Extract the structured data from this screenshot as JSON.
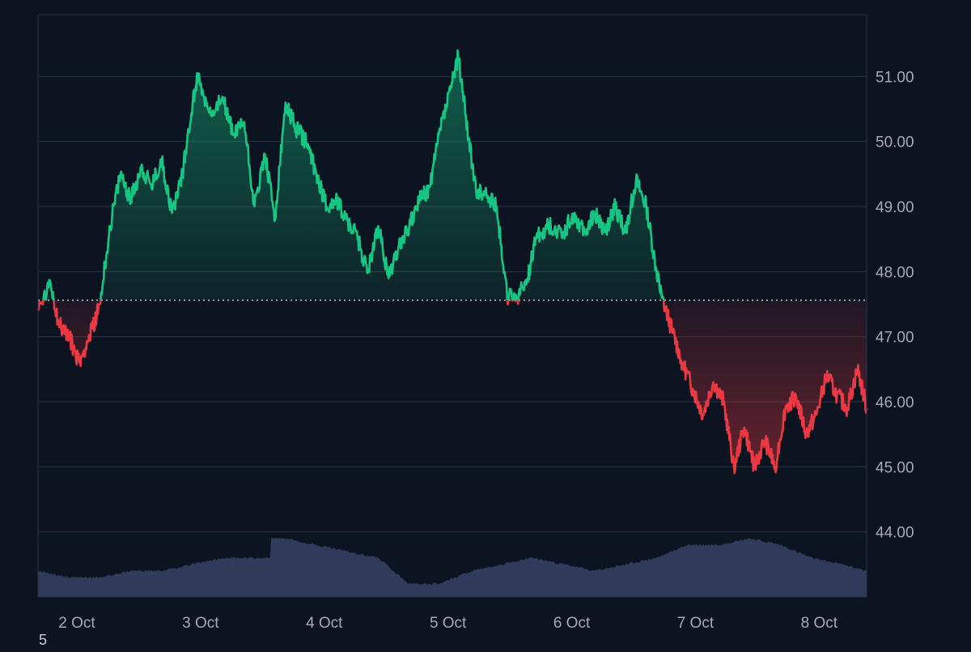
{
  "colors": {
    "background": "#0d1421",
    "grid": "#2b3445",
    "axis_text": "#a3aab8",
    "up": "#16c784",
    "down": "#ea3943",
    "baseline": "#d0d4dc",
    "volume": "#323a5c"
  },
  "corner_label": "5",
  "chart_data": {
    "type": "area",
    "title": "",
    "xlabel": "",
    "ylabel": "",
    "ylim": [
      43.0,
      51.95
    ],
    "xlim": [
      "2 Oct 00:00",
      "8 Oct 16:45"
    ],
    "baseline": 47.56,
    "grid": true,
    "y_axis_position": "right",
    "y_ticks": [
      "51.00",
      "50.00",
      "49.00",
      "48.00",
      "47.00",
      "46.00",
      "45.00",
      "44.00"
    ],
    "x_ticks": [
      "2 Oct",
      "3 Oct",
      "4 Oct",
      "5 Oct",
      "6 Oct",
      "7 Oct",
      "8 Oct"
    ],
    "price_series": {
      "x": [
        "2 Oct 00:00",
        "2 Oct 02:30",
        "2 Oct 04:00",
        "2 Oct 06:00",
        "2 Oct 08:00",
        "2 Oct 10:00",
        "2 Oct 12:00",
        "2 Oct 14:00",
        "2 Oct 16:00",
        "2 Oct 18:00",
        "2 Oct 20:00",
        "2 Oct 22:00",
        "3 Oct 00:00",
        "3 Oct 02:00",
        "3 Oct 04:00",
        "3 Oct 06:00",
        "3 Oct 07:00",
        "3 Oct 09:00",
        "3 Oct 12:00",
        "3 Oct 14:00",
        "3 Oct 16:00",
        "3 Oct 18:00",
        "3 Oct 20:00",
        "3 Oct 22:00",
        "4 Oct 00:00",
        "4 Oct 02:00",
        "4 Oct 04:00",
        "4 Oct 06:00",
        "4 Oct 08:00",
        "4 Oct 10:00",
        "4 Oct 12:00",
        "4 Oct 14:00",
        "4 Oct 16:00",
        "4 Oct 18:00",
        "4 Oct 20:00",
        "4 Oct 22:00",
        "5 Oct 00:00",
        "5 Oct 02:00",
        "5 Oct 04:00",
        "5 Oct 06:00",
        "5 Oct 08:00",
        "5 Oct 09:30",
        "5 Oct 11:00",
        "5 Oct 13:00",
        "5 Oct 15:00",
        "5 Oct 17:00",
        "5 Oct 19:00",
        "5 Oct 21:00",
        "5 Oct 23:00",
        "6 Oct 00:30",
        "6 Oct 03:00",
        "6 Oct 06:00",
        "6 Oct 08:00",
        "6 Oct 10:00",
        "6 Oct 12:00",
        "6 Oct 14:00",
        "6 Oct 16:00",
        "6 Oct 18:00",
        "6 Oct 20:00",
        "6 Oct 22:00",
        "7 Oct 00:00",
        "7 Oct 01:00",
        "7 Oct 03:00",
        "7 Oct 05:00",
        "7 Oct 07:00",
        "7 Oct 09:00",
        "7 Oct 11:00",
        "7 Oct 13:00",
        "7 Oct 15:00",
        "7 Oct 17:00",
        "7 Oct 19:00",
        "7 Oct 21:00",
        "7 Oct 23:00",
        "8 Oct 01:00",
        "8 Oct 03:00",
        "8 Oct 05:00",
        "8 Oct 07:00",
        "8 Oct 09:00",
        "8 Oct 11:00",
        "8 Oct 13:00",
        "8 Oct 15:00",
        "8 Oct 16:45"
      ],
      "values": [
        47.4,
        47.8,
        47.2,
        47.0,
        46.6,
        47.0,
        47.5,
        48.7,
        49.5,
        49.1,
        49.6,
        49.3,
        49.7,
        48.9,
        49.5,
        50.6,
        51.0,
        50.5,
        50.6,
        50.1,
        50.3,
        49.0,
        49.8,
        48.8,
        50.6,
        50.2,
        50.0,
        49.5,
        49.0,
        49.1,
        48.8,
        48.5,
        48.0,
        48.7,
        47.9,
        48.4,
        48.7,
        49.1,
        49.3,
        50.2,
        50.8,
        51.3,
        50.4,
        49.2,
        49.2,
        49.0,
        47.6,
        47.6,
        47.9,
        48.5,
        48.7,
        48.6,
        48.9,
        48.6,
        48.9,
        48.6,
        49.0,
        48.6,
        49.4,
        49.0,
        48.0,
        47.6,
        47.1,
        46.6,
        46.2,
        45.8,
        46.3,
        46.0,
        45.0,
        45.6,
        45.0,
        45.4,
        45.0,
        45.9,
        46.1,
        45.5,
        45.8,
        46.4,
        46.1,
        45.9,
        46.5,
        45.9
      ]
    },
    "volume_series": {
      "x": [
        "2 Oct 00:00",
        "2 Oct 06:00",
        "2 Oct 12:00",
        "2 Oct 18:00",
        "3 Oct 00:00",
        "3 Oct 06:00",
        "3 Oct 12:00",
        "3 Oct 18:00",
        "3 Oct 21:00",
        "3 Oct 21:15",
        "4 Oct 00:00",
        "4 Oct 06:00",
        "4 Oct 12:00",
        "4 Oct 18:00",
        "5 Oct 00:00",
        "5 Oct 06:00",
        "5 Oct 12:00",
        "5 Oct 18:00",
        "6 Oct 00:00",
        "6 Oct 06:00",
        "6 Oct 12:00",
        "6 Oct 18:00",
        "7 Oct 00:00",
        "7 Oct 06:00",
        "7 Oct 12:00",
        "7 Oct 18:00",
        "8 Oct 00:00",
        "8 Oct 06:00",
        "8 Oct 12:00",
        "8 Oct 16:45"
      ],
      "values": [
        43.4,
        43.3,
        43.3,
        43.4,
        43.4,
        43.5,
        43.6,
        43.6,
        43.6,
        43.9,
        43.9,
        43.8,
        43.7,
        43.6,
        43.2,
        43.2,
        43.4,
        43.5,
        43.6,
        43.5,
        43.4,
        43.5,
        43.6,
        43.8,
        43.8,
        43.9,
        43.8,
        43.6,
        43.5,
        43.4
      ]
    }
  }
}
